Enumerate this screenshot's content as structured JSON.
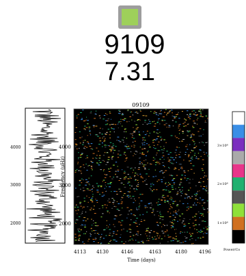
{
  "header": {
    "id": "9109",
    "value": "7.31"
  },
  "plot": {
    "title": "09109",
    "y_label": "Frequency (μHz)",
    "x_label": "Time (days)",
    "y_ticks": [
      "4000",
      "3000",
      "2000"
    ],
    "x_ticks": [
      "4113",
      "4130",
      "4146",
      "4163",
      "4180",
      "4196"
    ],
    "colorbar_ticks": [
      "3×10⁶",
      "2×10⁶",
      "1×10⁶"
    ],
    "colorbar_label": "Power/Co"
  }
}
